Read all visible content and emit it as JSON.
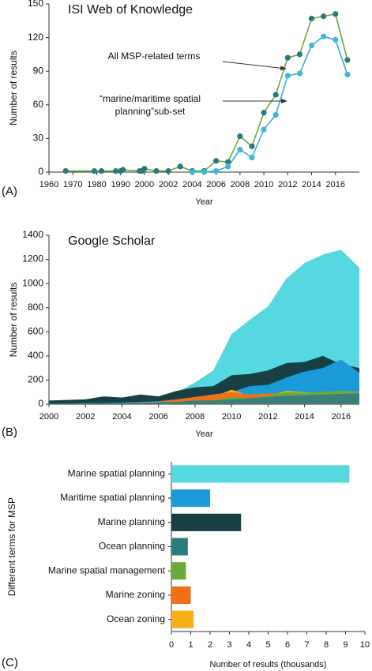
{
  "chart_data": [
    {
      "type": "line",
      "panel_label": "(A)",
      "title": "ISI Web of Knowledge",
      "title_color": "#6aaa3a",
      "xlabel": "Year",
      "ylabel": "Number of results",
      "x": [
        1967,
        1979,
        1982,
        1988,
        1990,
        1991,
        1998,
        1999,
        2000,
        2001,
        2002,
        2003,
        2004,
        2005,
        2006,
        2007,
        2008,
        2009,
        2010,
        2011,
        2012,
        2013,
        2014,
        2015,
        2016,
        2017
      ],
      "series": [
        {
          "name": "All MSP-related terms",
          "color": "#6aaa3a",
          "marker_color": "#2a7a78",
          "values": [
            1,
            1,
            1,
            1,
            1,
            2,
            1,
            1,
            3,
            1,
            1,
            5,
            1,
            1,
            10,
            9,
            32,
            23,
            53,
            69,
            102,
            105,
            137,
            139,
            141,
            100
          ]
        },
        {
          "name": "“marine/maritime spatial planning” sub-set",
          "color": "#3aaed8",
          "marker_color": "#3fb7d6",
          "values": [
            null,
            null,
            null,
            null,
            null,
            null,
            null,
            null,
            null,
            null,
            null,
            null,
            0,
            0,
            1,
            5,
            20,
            13,
            38,
            51,
            86,
            88,
            113,
            121,
            118,
            87
          ]
        }
      ],
      "annotations": [
        "All MSP-related terms",
        "“marine/maritime spatial",
        "planning”sub-set"
      ],
      "xlim": [
        1960,
        2018
      ],
      "xticks": [
        1960,
        1970,
        1980,
        1990,
        2000,
        2002,
        2004,
        2006,
        2008,
        2010,
        2012,
        2014,
        2016
      ],
      "ylim": [
        0,
        150
      ],
      "yticks": [
        0,
        30,
        60,
        90,
        120,
        150
      ],
      "grid": false
    },
    {
      "type": "area",
      "panel_label": "(B)",
      "title": "Google Scholar",
      "title_color": "#2aa0d8",
      "xlabel": "Year",
      "ylabel": "Number of results",
      "x": [
        2000,
        2001,
        2002,
        2003,
        2004,
        2005,
        2006,
        2007,
        2008,
        2009,
        2010,
        2011,
        2012,
        2013,
        2014,
        2015,
        2016,
        2017
      ],
      "series": [
        {
          "color": "#56d8e0",
          "values": [
            20,
            25,
            30,
            35,
            40,
            50,
            60,
            100,
            180,
            280,
            580,
            700,
            810,
            1040,
            1170,
            1240,
            1280,
            1130
          ]
        },
        {
          "color": "#173f44",
          "values": [
            30,
            35,
            40,
            65,
            55,
            80,
            65,
            110,
            140,
            150,
            240,
            250,
            280,
            340,
            350,
            400,
            330,
            300
          ]
        },
        {
          "color": "#1a9ad6",
          "values": [
            5,
            5,
            10,
            10,
            15,
            20,
            25,
            40,
            60,
            80,
            100,
            150,
            160,
            220,
            270,
            300,
            370,
            260
          ]
        },
        {
          "color": "#f5b019",
          "values": [
            3,
            4,
            5,
            8,
            10,
            12,
            20,
            35,
            50,
            60,
            120,
            70,
            70,
            110,
            100,
            95,
            110,
            100
          ]
        },
        {
          "color": "#f07018",
          "values": [
            2,
            3,
            5,
            8,
            10,
            15,
            20,
            40,
            60,
            80,
            100,
            80,
            90,
            90,
            80,
            85,
            75,
            60
          ]
        },
        {
          "color": "#6aaa3a",
          "values": [
            2,
            2,
            3,
            5,
            5,
            8,
            10,
            15,
            25,
            30,
            60,
            50,
            70,
            100,
            95,
            105,
            110,
            95
          ]
        },
        {
          "color": "#3a7f7a",
          "values": [
            5,
            5,
            5,
            10,
            10,
            10,
            15,
            20,
            30,
            30,
            40,
            50,
            60,
            70,
            75,
            80,
            85,
            90
          ]
        }
      ],
      "xlim": [
        2000,
        2017
      ],
      "xticks": [
        2000,
        2002,
        2004,
        2006,
        2008,
        2010,
        2012,
        2014,
        2016
      ],
      "ylim": [
        0,
        1400
      ],
      "yticks": [
        0,
        200,
        400,
        600,
        800,
        1000,
        1200,
        1400
      ],
      "grid": false
    },
    {
      "type": "barh",
      "panel_label": "(C)",
      "xlabel": "Number of results (thousands)",
      "ylabel": "Different terms for MSP",
      "categories": [
        "Marine spatial planning",
        "Maritime spatial planning",
        "Marine planning",
        "Ocean planning",
        "Marine spatial management",
        "Marine zoning",
        "Ocean zoning"
      ],
      "values": [
        9.2,
        2.0,
        3.6,
        0.85,
        0.75,
        1.0,
        1.15
      ],
      "colors": [
        "#56d8e0",
        "#1a9ad6",
        "#173f44",
        "#2e7b7e",
        "#6aaa3a",
        "#f07018",
        "#f5b019"
      ],
      "xlim": [
        0,
        10
      ],
      "xticks": [
        0,
        1,
        2,
        3,
        4,
        5,
        6,
        7,
        8,
        9,
        10
      ],
      "grid": false
    }
  ]
}
